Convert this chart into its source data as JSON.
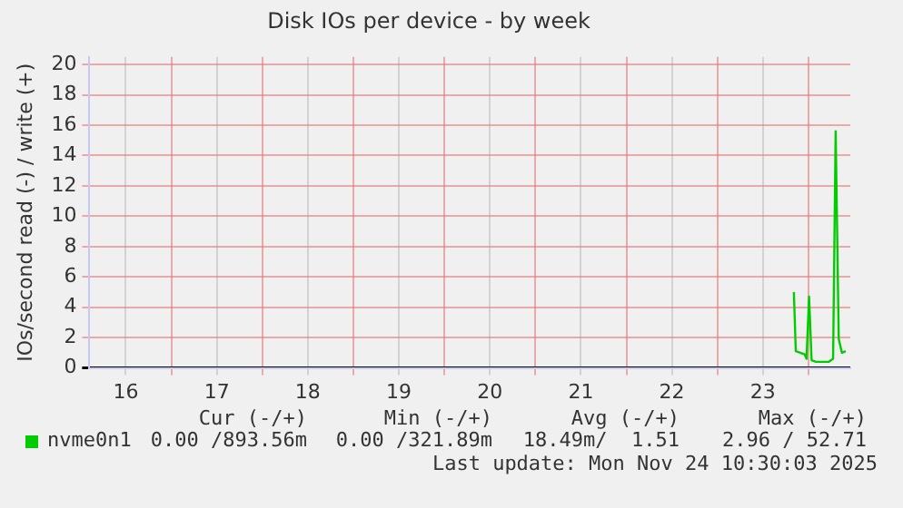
{
  "chart_data": {
    "type": "line",
    "title": "Disk IOs per device - by week",
    "ylabel": "IOs/second read (-) / write (+)",
    "xlim": [
      15.6,
      23.96
    ],
    "xticks": [
      16,
      {
        "value": 16.5,
        "label": null
      },
      17,
      {
        "value": 17.5,
        "label": null
      },
      18,
      {
        "value": 18.5,
        "label": null
      },
      19,
      {
        "value": 19.5,
        "label": null
      },
      20,
      {
        "value": 20.5,
        "label": null
      },
      21,
      {
        "value": 21.5,
        "label": null
      },
      22,
      {
        "value": 22.5,
        "label": null
      },
      23,
      {
        "value": 23.5,
        "label": null
      }
    ],
    "ylim": [
      0,
      20.5
    ],
    "yticks": [
      0,
      2,
      4,
      6,
      8,
      10,
      12,
      14,
      16,
      18,
      20
    ],
    "grid": true,
    "legend": "bottom",
    "marker": "none",
    "series": [
      {
        "name": "nvme0n1",
        "color": "#00cc00",
        "x": [
          23.34,
          23.361,
          23.41,
          23.458,
          23.479,
          23.507,
          23.535,
          23.583,
          23.722,
          23.771,
          23.799,
          23.833,
          23.868,
          23.91
        ],
        "values": [
          5.0,
          1.1,
          1.0,
          0.9,
          0.6,
          4.7,
          0.5,
          0.4,
          0.4,
          0.6,
          15.6,
          1.9,
          1.0,
          1.1
        ]
      }
    ],
    "annotations": [
      "Cur (-/+)",
      "Min (-/+)",
      "Avg (-/+)",
      "Max (-/+)",
      "0.00 /893.56m",
      "0.00 /321.89m",
      "18.49m/  1.51",
      "2.96 / 52.71",
      "Last update: Mon Nov 24 10:30:03 2025"
    ]
  }
}
